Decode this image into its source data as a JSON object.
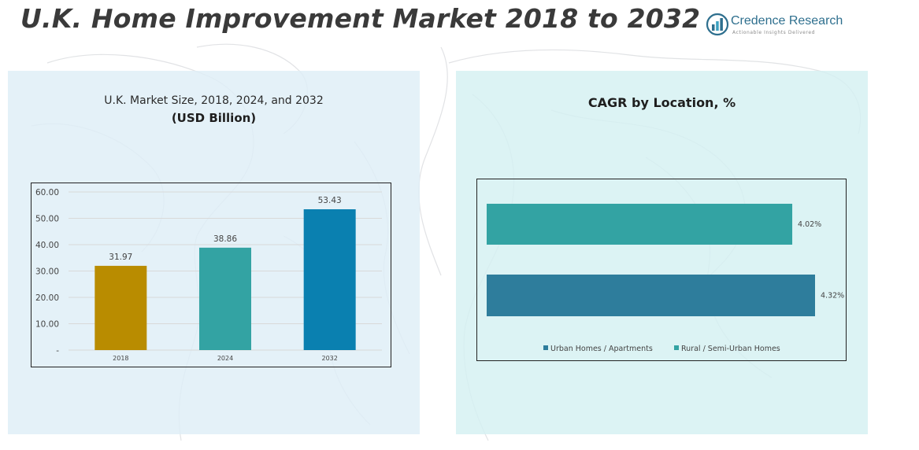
{
  "header": {
    "title": "U.K. Home Improvement Market 2018 to 2032",
    "brand_name": "Credence Research",
    "brand_tagline": "Actionable Insights Delivered"
  },
  "colors": {
    "bar_2018": "#b98c00",
    "bar_2024": "#33a3a3",
    "bar_2032": "#0a80b0",
    "urban": "#2e7d9c",
    "rural": "#33a3a3",
    "brand": "#2e6f8e"
  },
  "chart_data": [
    {
      "type": "bar",
      "title": "U.K. Market Size, 2018, 2024, and 2032",
      "subtitle": "(USD Billion)",
      "categories": [
        "2018",
        "2024",
        "2032"
      ],
      "values": [
        31.97,
        38.86,
        53.43
      ],
      "value_labels": [
        "31.97",
        "38.86",
        "53.43"
      ],
      "ylim": [
        0,
        60
      ],
      "yticks": [
        "-",
        "10.00",
        "20.00",
        "30.00",
        "40.00",
        "50.00",
        "60.00"
      ],
      "grid": true,
      "legend": "none"
    },
    {
      "type": "bar",
      "orientation": "horizontal",
      "title": "CAGR by Location, %",
      "series": [
        {
          "name": "Rural / Semi-Urban Homes",
          "value": 4.02,
          "label": "4.02%"
        },
        {
          "name": "Urban Homes / Apartments",
          "value": 4.32,
          "label": "4.32%"
        }
      ],
      "legend_items": [
        "Urban Homes / Apartments",
        "Rural / Semi-Urban Homes"
      ],
      "legend": "bottom"
    }
  ]
}
